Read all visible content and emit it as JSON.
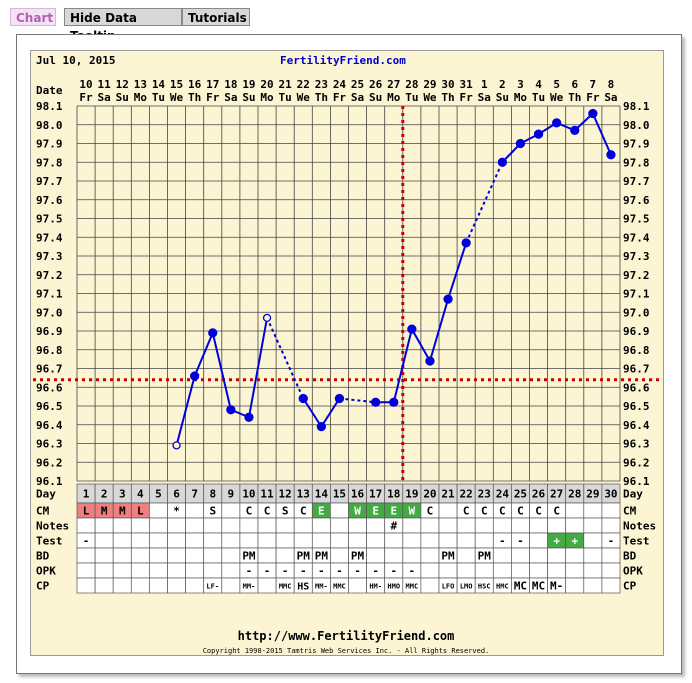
{
  "tabs": {
    "chart": "Chart",
    "hide_tooltip": "Hide Data Tooltip",
    "tutorials": "Tutorials"
  },
  "header": {
    "date": "Jul 10, 2015",
    "site": "FertilityFriend.com"
  },
  "footer": {
    "url": "http://www.FertilityFriend.com",
    "copyright": "Copyright 1998-2015 Tamtris Web Services Inc. - All Rights Reserved."
  },
  "colors": {
    "temp_line": "#0000dd",
    "coverline": "#cc0000",
    "chart_bg": "#fcf5d4",
    "cm_red": "#f08080",
    "cm_green": "#44aa44",
    "test_positive": "#44aa44"
  },
  "chart_data": {
    "type": "line",
    "row_labels": {
      "date": "Date",
      "day": "Day",
      "cm": "CM",
      "notes": "Notes",
      "test": "Test",
      "bd": "BD",
      "opk": "OPK",
      "cp": "CP"
    },
    "dates": [
      "10",
      "11",
      "12",
      "13",
      "14",
      "15",
      "16",
      "17",
      "18",
      "19",
      "20",
      "21",
      "22",
      "23",
      "24",
      "25",
      "26",
      "27",
      "28",
      "29",
      "30",
      "31",
      "1",
      "2",
      "3",
      "4",
      "5",
      "6",
      "7",
      "8"
    ],
    "weekdays": [
      "Fr",
      "Sa",
      "Su",
      "Mo",
      "Tu",
      "We",
      "Th",
      "Fr",
      "Sa",
      "Su",
      "Mo",
      "Tu",
      "We",
      "Th",
      "Fr",
      "Sa",
      "Su",
      "Mo",
      "Tu",
      "We",
      "Th",
      "Fr",
      "Sa",
      "Su",
      "Mo",
      "Tu",
      "We",
      "Th",
      "Fr",
      "Sa"
    ],
    "days": [
      1,
      2,
      3,
      4,
      5,
      6,
      7,
      8,
      9,
      10,
      11,
      12,
      13,
      14,
      15,
      16,
      17,
      18,
      19,
      20,
      21,
      22,
      23,
      24,
      25,
      26,
      27,
      28,
      29,
      30
    ],
    "y_ticks": [
      "96.1",
      "96.2",
      "96.3",
      "96.4",
      "96.5",
      "96.6",
      "96.7",
      "96.8",
      "96.9",
      "97.0",
      "97.1",
      "97.2",
      "97.3",
      "97.4",
      "97.5",
      "97.6",
      "97.7",
      "97.8",
      "97.9",
      "98.0",
      "98.1"
    ],
    "ylim": [
      96.1,
      98.1
    ],
    "temperatures": [
      null,
      null,
      null,
      null,
      null,
      96.29,
      96.66,
      96.89,
      96.48,
      96.44,
      96.97,
      null,
      96.54,
      96.39,
      96.54,
      null,
      96.52,
      96.52,
      96.91,
      96.74,
      97.07,
      97.37,
      null,
      97.8,
      97.9,
      97.95,
      98.01,
      97.97,
      98.06,
      97.84
    ],
    "open_points": [
      6,
      11
    ],
    "dotted_segments": [
      [
        11,
        13
      ],
      [
        15,
        17
      ],
      [
        22,
        24
      ]
    ],
    "coverline": 96.64,
    "ovulation_day": 18,
    "cm": [
      "L",
      "M",
      "M",
      "L",
      "",
      "*",
      "",
      "S",
      "",
      "C",
      "C",
      "S",
      "C",
      "E",
      "",
      "W",
      "E",
      "E",
      "W",
      "C",
      "",
      "C",
      "C",
      "C",
      "C",
      "C",
      "C",
      "",
      "",
      ""
    ],
    "cm_colors": [
      "red",
      "red",
      "red",
      "red",
      "",
      "",
      "",
      "",
      "",
      "",
      "",
      "",
      "",
      "green",
      "",
      "green",
      "green",
      "green",
      "green",
      "",
      "",
      "",
      "",
      "",
      "",
      "",
      "",
      "",
      "",
      ""
    ],
    "notes": [
      "",
      "",
      "",
      "",
      "",
      "",
      "",
      "",
      "",
      "",
      "",
      "",
      "",
      "",
      "",
      "",
      "",
      "#",
      "",
      "",
      "",
      "",
      "",
      "",
      "",
      "",
      "",
      "",
      "",
      ""
    ],
    "test": [
      "-",
      "",
      "",
      "",
      "",
      "",
      "",
      "",
      "",
      "",
      "",
      "",
      "",
      "",
      "",
      "",
      "",
      "",
      "",
      "",
      "",
      "",
      "",
      "-",
      "-",
      "",
      "+",
      "+",
      "",
      "-"
    ],
    "bd": [
      "",
      "",
      "",
      "",
      "",
      "",
      "",
      "",
      "",
      "PM",
      "",
      "",
      "PM",
      "PM",
      "",
      "PM",
      "",
      "",
      "",
      "",
      "PM",
      "",
      "PM",
      "",
      "",
      "",
      "",
      "",
      "",
      ""
    ],
    "opk": [
      "",
      "",
      "",
      "",
      "",
      "",
      "",
      "",
      "",
      "-",
      "-",
      "-",
      "-",
      "-",
      "-",
      "-",
      "-",
      "-",
      "-",
      "",
      "",
      "",
      "",
      "",
      "",
      "",
      "",
      "",
      "",
      ""
    ],
    "cp": [
      "",
      "",
      "",
      "",
      "",
      "",
      "",
      "LF-",
      "",
      "MM-",
      "",
      "MMC",
      "HS",
      "MM-",
      "MMC",
      "",
      "HM-",
      "HMO",
      "MMC",
      "",
      "LFO",
      "LMO",
      "HSC",
      "HMC",
      "MC",
      "MC",
      "M-",
      "",
      "",
      ""
    ]
  }
}
